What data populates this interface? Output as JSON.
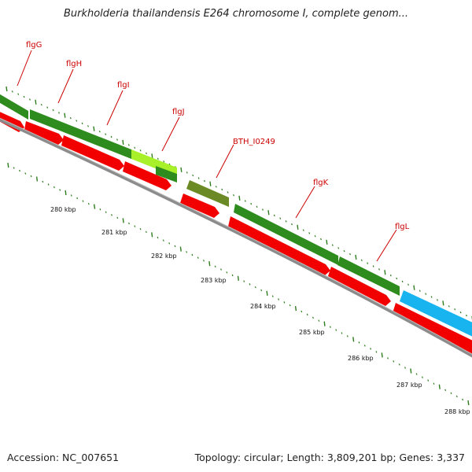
{
  "title": "Burkholderia thailandensis E264 chromosome I, complete genom...",
  "footer": {
    "accession": "Accession: NC_007651",
    "summary": "Topology: circular; Length: 3,809,201 bp; Genes: 3,337"
  },
  "colors": {
    "gene_green": "#2e8b1e",
    "gene_lime": "#a8f02a",
    "gene_olive": "#6b8a25",
    "gene_cyan": "#18b4f0",
    "cds_red": "#f20000",
    "backbone_gray": "#8c8c8c",
    "tick_green": "#2e7d1e",
    "label_red": "#cc0000"
  },
  "genes": [
    {
      "name": "flgG",
      "color": "gene_green"
    },
    {
      "name": "flgH",
      "color": "gene_green"
    },
    {
      "name": "flgI",
      "color": "gene_green"
    },
    {
      "name": "flgJ",
      "color": "gene_lime"
    },
    {
      "name": "BTH_I0249",
      "color": "gene_olive"
    },
    {
      "name": "flgK",
      "color": "gene_green"
    },
    {
      "name": "flgL",
      "color": "gene_green"
    }
  ],
  "scale_labels": [
    "280 kbp",
    "281 kbp",
    "282 kbp",
    "283 kbp",
    "284 kbp",
    "285 kbp",
    "286 kbp",
    "287 kbp",
    "288 kbp"
  ]
}
